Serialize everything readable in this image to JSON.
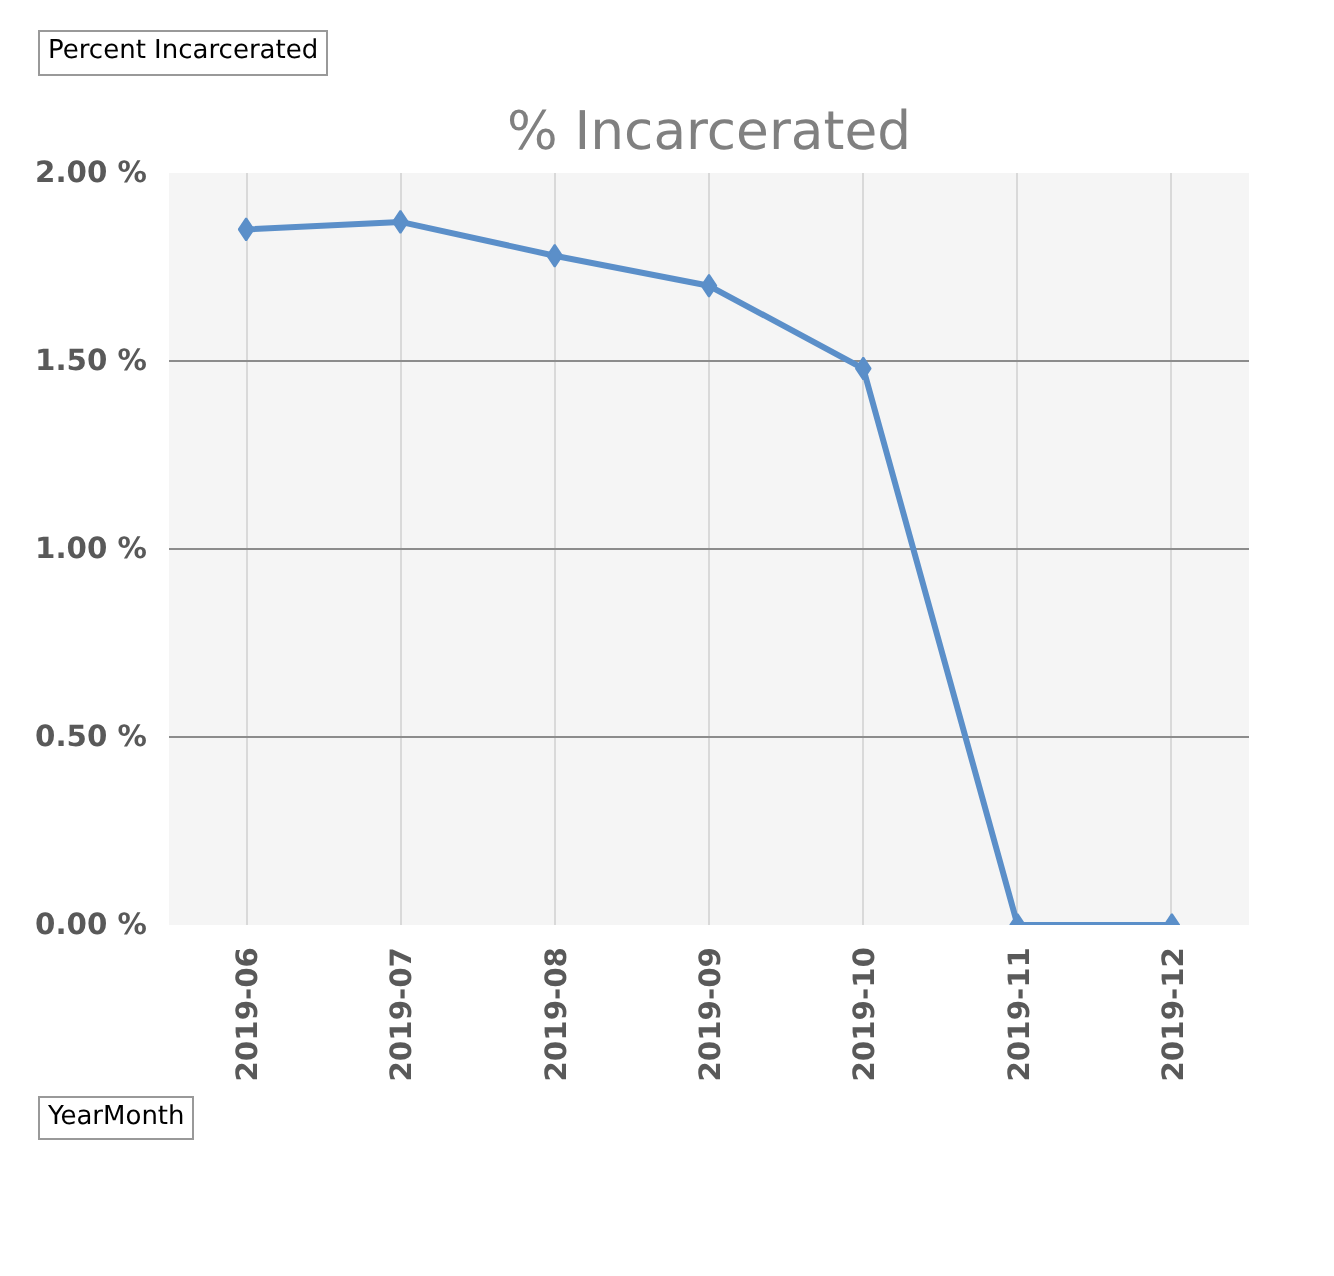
{
  "chart_data": {
    "type": "line",
    "title": "% Incarcerated",
    "categories": [
      "2019-06",
      "2019-07",
      "2019-08",
      "2019-09",
      "2019-10",
      "2019-11",
      "2019-12"
    ],
    "series": [
      {
        "color": "#5b8fc9",
        "values": [
          1.85,
          1.87,
          1.78,
          1.7,
          1.48,
          0,
          0
        ]
      }
    ],
    "ylim": [
      0,
      2
    ],
    "yticks": [
      {
        "value": 0,
        "label": "0.00 %"
      },
      {
        "value": 0.5,
        "label": "0.50 %"
      },
      {
        "value": 1,
        "label": "1.00 %"
      },
      {
        "value": 1.5,
        "label": "1.50 %"
      },
      {
        "value": 2,
        "label": "2.00 %"
      }
    ],
    "grid": true,
    "marker": "diamond",
    "line_style": "solid",
    "annotations": [
      "Percent Incarcerated",
      "YearMonth"
    ]
  }
}
